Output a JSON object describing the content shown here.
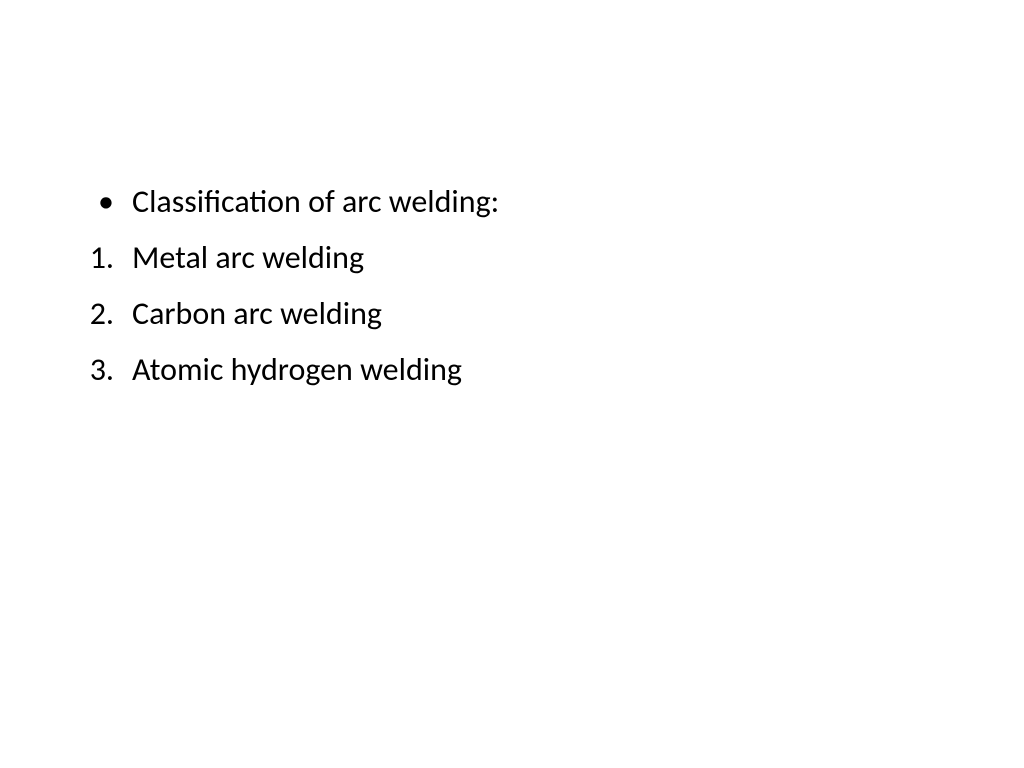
{
  "slide": {
    "background_color": "#ffffff",
    "text_color": "#000000",
    "font_family": "Calibri",
    "font_size_pt": 24,
    "heading": {
      "bullet": "•",
      "text": "Classification of arc welding:"
    },
    "items": [
      {
        "number": "1.",
        "text": "Metal arc welding"
      },
      {
        "number": "2.",
        "text": "Carbon arc welding"
      },
      {
        "number": "3.",
        "text": "Atomic hydrogen welding"
      }
    ]
  }
}
